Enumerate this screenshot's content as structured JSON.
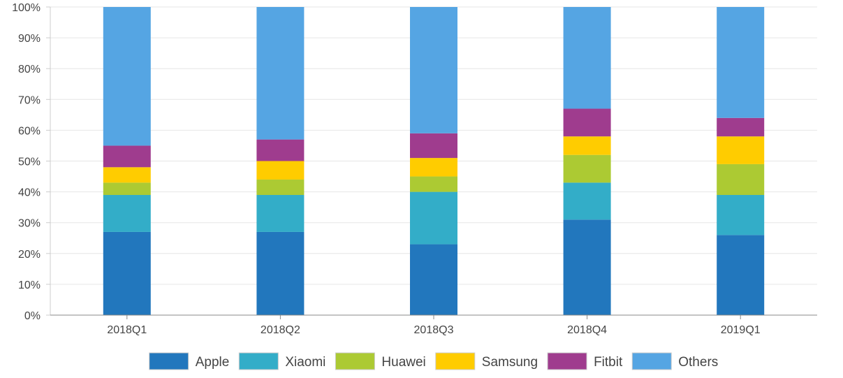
{
  "chart_data": {
    "type": "bar",
    "stacked": true,
    "categories": [
      "2018Q1",
      "2018Q2",
      "2018Q3",
      "2018Q4",
      "2019Q1"
    ],
    "series": [
      {
        "name": "Apple",
        "color": "#2277bd",
        "values": [
          27,
          27,
          23,
          31,
          26
        ]
      },
      {
        "name": "Xiaomi",
        "color": "#33adc8",
        "values": [
          12,
          12,
          17,
          12,
          13
        ]
      },
      {
        "name": "Huawei",
        "color": "#acca33",
        "values": [
          4,
          5,
          5,
          9,
          10
        ]
      },
      {
        "name": "Samsung",
        "color": "#ffcc00",
        "values": [
          5,
          6,
          6,
          6,
          9
        ]
      },
      {
        "name": "Fitbit",
        "color": "#9f3c8e",
        "values": [
          7,
          7,
          8,
          9,
          6
        ]
      },
      {
        "name": "Others",
        "color": "#55a5e3",
        "values": [
          45,
          43,
          41,
          33,
          36
        ]
      }
    ],
    "yticks": [
      "0%",
      "10%",
      "20%",
      "30%",
      "40%",
      "50%",
      "60%",
      "70%",
      "80%",
      "90%",
      "100%"
    ],
    "ylim": [
      0,
      100
    ],
    "grid": true,
    "legend": "bottom",
    "title": "",
    "xlabel": "",
    "ylabel": ""
  }
}
